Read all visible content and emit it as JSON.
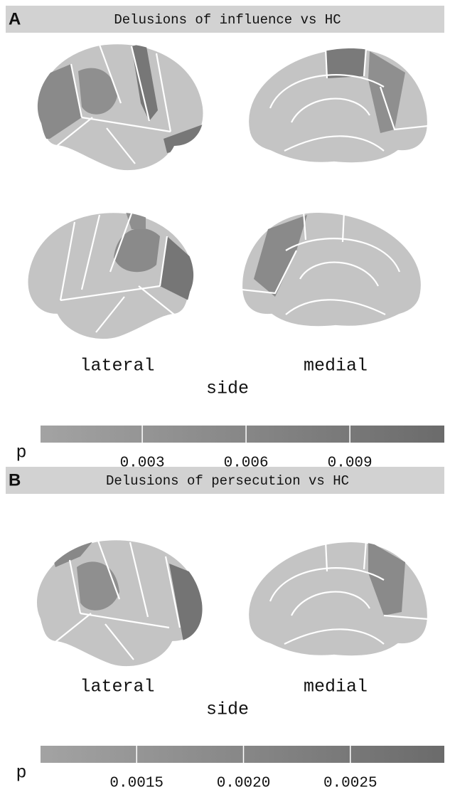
{
  "chart_data": [
    {
      "type": "colorbar",
      "panel": "A",
      "title": "Delusions of influence vs HC",
      "views": [
        "lateral",
        "medial"
      ],
      "xlabel": "side",
      "legend_title": "p",
      "xlim": [
        6e-05,
        0.01173
      ],
      "xticks": [
        0.003,
        0.006,
        0.009
      ],
      "colors": [
        "#a3a3a3",
        "#6b6b6b"
      ]
    },
    {
      "type": "colorbar",
      "panel": "B",
      "title": "Delusions of persecution vs HC",
      "views": [
        "lateral",
        "medial"
      ],
      "xlabel": "side",
      "legend_title": "p",
      "xlim": [
        0.00105,
        0.00294
      ],
      "xticks": [
        0.0015,
        {
          "value": 0.002,
          "label": "0.0020"
        },
        0.0025
      ],
      "colors": [
        "#a3a3a3",
        "#6b6b6b"
      ]
    }
  ]
}
